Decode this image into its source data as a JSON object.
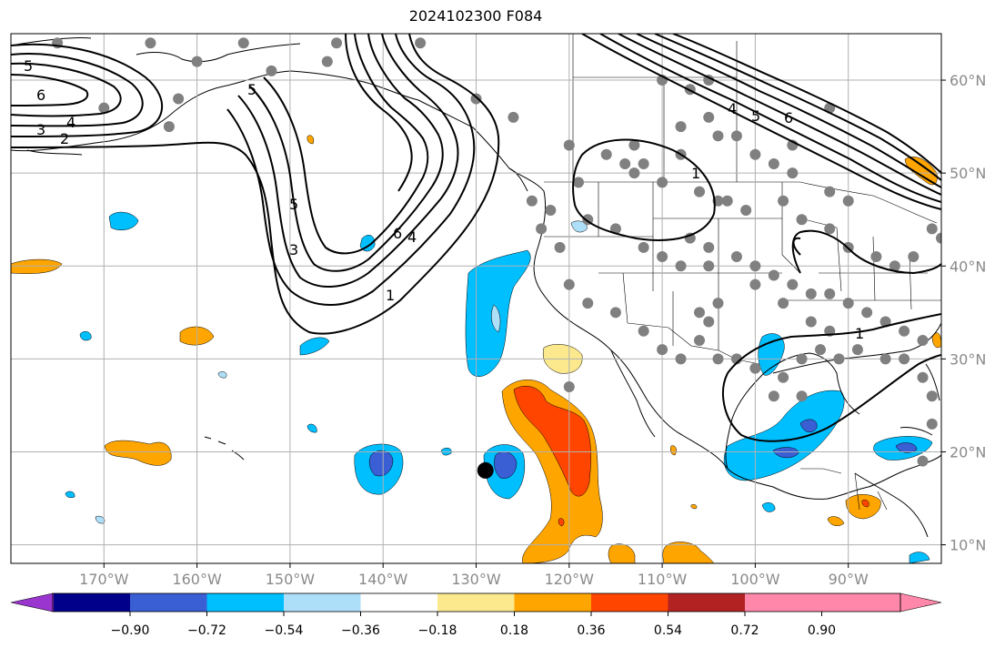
{
  "title": "2024102300 F084",
  "map": {
    "projection": "PlateCarree",
    "lon_range": [
      -180,
      -80
    ],
    "lat_range": [
      8,
      65
    ],
    "lon_ticks": [
      {
        "lon": -170,
        "label": "170°W"
      },
      {
        "lon": -160,
        "label": "160°W"
      },
      {
        "lon": -150,
        "label": "150°W"
      },
      {
        "lon": -140,
        "label": "140°W"
      },
      {
        "lon": -130,
        "label": "130°W"
      },
      {
        "lon": -120,
        "label": "120°W"
      },
      {
        "lon": -110,
        "label": "110°W"
      },
      {
        "lon": -100,
        "label": "100°W"
      },
      {
        "lon": -90,
        "label": "90°W"
      }
    ],
    "lat_ticks": [
      {
        "lat": 10,
        "label": "10°N"
      },
      {
        "lat": 20,
        "label": "20°N"
      },
      {
        "lat": 30,
        "label": "30°N"
      },
      {
        "lat": 40,
        "label": "40°N"
      },
      {
        "lat": 50,
        "label": "50°N"
      },
      {
        "lat": 60,
        "label": "60°N"
      }
    ],
    "gridlines": true,
    "storm_marker": {
      "lon": -129,
      "lat": 18
    },
    "contour_labels": [
      "5",
      "6",
      "4",
      "3",
      "2",
      "1"
    ]
  },
  "colorbar": {
    "colors": [
      "#9a35d0",
      "#00008b",
      "#3a5ed4",
      "#00bfff",
      "#aedff8",
      "#ffffff",
      "#fce98e",
      "#ffa500",
      "#ff4500",
      "#b22222",
      "#ff88aa"
    ],
    "ticks": [
      "−0.90",
      "−0.72",
      "−0.54",
      "−0.36",
      "−0.18",
      "0.18",
      "0.36",
      "0.54",
      "0.72",
      "0.90"
    ],
    "extend": "both"
  },
  "colors": {
    "land_line": "#000000",
    "grid": "#b0b0b0",
    "station": "#808080"
  }
}
